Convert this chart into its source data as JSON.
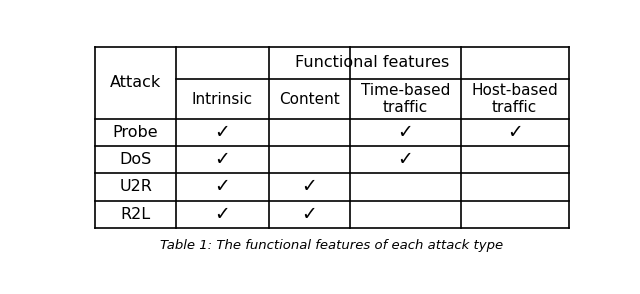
{
  "title": "Functional features",
  "col_headers": [
    "Intrinsic",
    "Content",
    "Time-based\ntraffic",
    "Host-based\ntraffic"
  ],
  "row_headers": [
    "Probe",
    "DoS",
    "U2R",
    "R2L"
  ],
  "checkmarks": [
    [
      true,
      false,
      true,
      true
    ],
    [
      true,
      false,
      true,
      false
    ],
    [
      true,
      true,
      false,
      false
    ],
    [
      true,
      true,
      false,
      false
    ]
  ],
  "caption": "Table 1: The functional features of each attack type",
  "bg_color": "#ffffff",
  "text_color": "#000000",
  "line_color": "#000000",
  "font_size": 11.5,
  "check_symbol": "✓"
}
